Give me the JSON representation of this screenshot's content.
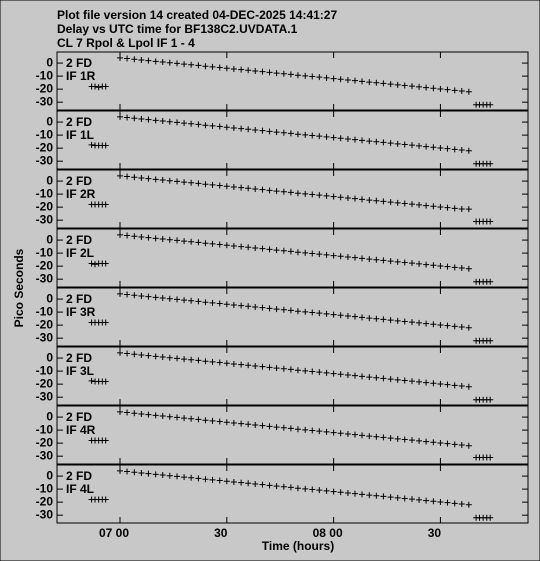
{
  "chart_data": {
    "type": "scatter",
    "title": [
      "Plot file version 14  created 04-DEC-2025 14:41:27",
      "Delay vs UTC time for BF138C2.UVDATA.1",
      "CL 7  Rpol & Lpol  IF 1 - 4"
    ],
    "x_label": "Time (hours)",
    "y_label": "Pico Seconds",
    "xlim": [
      6.705,
      8.91
    ],
    "ylim": [
      -36,
      8.5
    ],
    "xticks": [
      {
        "value": 7,
        "label": "07 00"
      },
      {
        "value": 7.5,
        "label": "30"
      },
      {
        "value": 8,
        "label": "08 00"
      },
      {
        "value": 8.5,
        "label": "30"
      }
    ],
    "yticks": [
      0,
      -10,
      -20,
      -30
    ],
    "x": [
      6.867,
      6.883,
      6.9,
      6.917,
      6.933,
      7,
      7.033,
      7.067,
      7.1,
      7.133,
      7.167,
      7.2,
      7.233,
      7.267,
      7.3,
      7.333,
      7.367,
      7.4,
      7.433,
      7.467,
      7.5,
      7.533,
      7.567,
      7.6,
      7.633,
      7.667,
      7.7,
      7.733,
      7.767,
      7.8,
      7.833,
      7.867,
      7.9,
      7.933,
      7.967,
      8,
      8.033,
      8.067,
      8.1,
      8.133,
      8.167,
      8.2,
      8.233,
      8.267,
      8.3,
      8.333,
      8.367,
      8.4,
      8.433,
      8.467,
      8.5,
      8.533,
      8.567,
      8.6,
      8.633,
      8.667,
      8.683,
      8.7,
      8.717,
      8.733
    ],
    "series": [
      {
        "name": "IF 1R",
        "label": "2 FD",
        "color": "#000000",
        "values": [
          -18,
          -18,
          -18.5,
          -18,
          -18,
          4,
          3.5,
          2.9,
          2.4,
          1.9,
          1.3,
          0.8,
          0.3,
          -0.2,
          -0.8,
          -1.3,
          -1.8,
          -2.4,
          -2.9,
          -3.4,
          -4,
          -4.5,
          -5,
          -5.5,
          -6.1,
          -6.6,
          -7.1,
          -7.7,
          -8.2,
          -8.7,
          -9.3,
          -9.8,
          -10.3,
          -10.8,
          -11.4,
          -11.9,
          -12.4,
          -13,
          -13.5,
          -14,
          -14.6,
          -15.1,
          -15.6,
          -16.1,
          -16.7,
          -17.2,
          -17.7,
          -18.3,
          -18.8,
          -19.3,
          -19.9,
          -20.4,
          -20.9,
          -21.4,
          -22,
          -32,
          -32,
          -32,
          -32,
          -32
        ]
      },
      {
        "name": "IF 1L",
        "label": "2 FD",
        "color": "#000000",
        "values": [
          -17.5,
          -18,
          -18,
          -18,
          -18,
          4,
          3.5,
          2.9,
          2.4,
          1.9,
          1.3,
          0.8,
          0.3,
          -0.2,
          -0.8,
          -1.3,
          -1.8,
          -2.4,
          -2.9,
          -3.4,
          -4,
          -4.5,
          -5,
          -5.5,
          -6.1,
          -6.6,
          -7.1,
          -7.7,
          -8.2,
          -8.7,
          -9.3,
          -9.8,
          -10.3,
          -10.8,
          -11.4,
          -11.9,
          -12.4,
          -13,
          -13.5,
          -14,
          -14.6,
          -15.1,
          -15.6,
          -16.1,
          -16.7,
          -17.2,
          -17.7,
          -18.3,
          -18.8,
          -19.3,
          -19.9,
          -20.4,
          -20.9,
          -21.4,
          -22,
          -32,
          -32,
          -32,
          -32,
          -32
        ]
      },
      {
        "name": "IF 2R",
        "label": "2 FD",
        "color": "#000000",
        "values": [
          -18,
          -18,
          -18,
          -18,
          -18,
          4,
          3.5,
          2.9,
          2.4,
          1.9,
          1.3,
          0.8,
          0.3,
          -0.2,
          -0.8,
          -1.3,
          -1.8,
          -2.4,
          -2.9,
          -3.4,
          -4,
          -4.5,
          -5,
          -5.5,
          -6.1,
          -6.6,
          -7.1,
          -7.7,
          -8.2,
          -8.7,
          -9.3,
          -9.8,
          -10.3,
          -10.8,
          -11.4,
          -11.9,
          -12.4,
          -13,
          -13.5,
          -14,
          -14.6,
          -15.1,
          -15.6,
          -16.1,
          -16.7,
          -17.2,
          -17.7,
          -18.3,
          -18.8,
          -19.3,
          -19.9,
          -20.4,
          -20.9,
          -21.4,
          -21.5,
          -31,
          -31,
          -31,
          -31,
          -31
        ]
      },
      {
        "name": "IF 2L",
        "label": "2 FD",
        "color": "#000000",
        "values": [
          -18,
          -18.5,
          -18,
          -18,
          -18,
          4,
          3.5,
          2.9,
          2.4,
          1.9,
          1.3,
          0.8,
          0.3,
          -0.2,
          -0.8,
          -1.3,
          -1.8,
          -2.4,
          -2.9,
          -3.4,
          -4,
          -4.5,
          -5,
          -5.5,
          -6.1,
          -6.6,
          -7.1,
          -7.7,
          -8.2,
          -8.7,
          -9.3,
          -9.8,
          -10.3,
          -10.8,
          -11.4,
          -11.9,
          -12.4,
          -13,
          -13.5,
          -14,
          -14.6,
          -15.1,
          -15.6,
          -16.1,
          -16.7,
          -17.2,
          -17.7,
          -18.3,
          -18.8,
          -19.3,
          -19.9,
          -20.4,
          -20.9,
          -21.4,
          -22,
          -32,
          -32,
          -32,
          -32,
          -32
        ]
      },
      {
        "name": "IF 3R",
        "label": "2 FD",
        "color": "#000000",
        "values": [
          -18,
          -18,
          -18,
          -18,
          -18,
          4,
          3.5,
          2.9,
          2.4,
          1.9,
          1.3,
          0.8,
          0.3,
          -0.2,
          -0.8,
          -1.3,
          -1.8,
          -2.4,
          -2.9,
          -3.4,
          -4,
          -4.5,
          -5,
          -5.5,
          -6.1,
          -6.6,
          -7.1,
          -7.7,
          -8.2,
          -8.7,
          -9.3,
          -9.8,
          -10.3,
          -10.8,
          -11.4,
          -11.9,
          -12.4,
          -13,
          -13.5,
          -14,
          -14.6,
          -15.1,
          -15.6,
          -16.1,
          -16.7,
          -17.2,
          -17.7,
          -18.3,
          -18.8,
          -19.3,
          -19.9,
          -20.4,
          -20.9,
          -21.4,
          -22,
          -32,
          -32,
          -32,
          -32,
          -32
        ]
      },
      {
        "name": "IF 3L",
        "label": "2 FD",
        "color": "#000000",
        "values": [
          -17.5,
          -18,
          -18,
          -18,
          -18,
          4,
          3.5,
          2.9,
          2.4,
          1.9,
          1.3,
          0.8,
          0.3,
          -0.2,
          -0.8,
          -1.3,
          -1.8,
          -2.4,
          -2.9,
          -3.4,
          -4,
          -4.5,
          -5,
          -5.5,
          -6.1,
          -6.6,
          -7.1,
          -7.7,
          -8.2,
          -8.7,
          -9.3,
          -9.8,
          -10.3,
          -10.8,
          -11.4,
          -11.9,
          -12.4,
          -13,
          -13.5,
          -14,
          -14.6,
          -15.1,
          -15.6,
          -16.1,
          -16.7,
          -17.2,
          -17.7,
          -18.3,
          -18.8,
          -19.3,
          -19.9,
          -20.4,
          -20.9,
          -21.4,
          -22,
          -32,
          -32,
          -32,
          -32,
          -32
        ]
      },
      {
        "name": "IF 4R",
        "label": "2 FD",
        "color": "#000000",
        "values": [
          -18,
          -18,
          -18,
          -18,
          -18,
          4,
          3.5,
          2.9,
          2.4,
          1.9,
          1.3,
          0.8,
          0.3,
          -0.2,
          -0.8,
          -1.3,
          -1.8,
          -2.4,
          -2.9,
          -3.4,
          -4,
          -4.5,
          -5,
          -5.5,
          -6.1,
          -6.6,
          -7.1,
          -7.7,
          -8.2,
          -8.7,
          -9.3,
          -9.8,
          -10.3,
          -10.8,
          -11.4,
          -11.9,
          -12.4,
          -13,
          -13.5,
          -14,
          -14.6,
          -15.1,
          -15.6,
          -16.1,
          -16.7,
          -17.2,
          -17.7,
          -18.3,
          -18.8,
          -19.3,
          -19.9,
          -20.4,
          -20.9,
          -21.4,
          -22,
          -31,
          -31,
          -31,
          -31,
          -31
        ]
      },
      {
        "name": "IF 4L",
        "label": "2 FD",
        "color": "#000000",
        "values": [
          -18,
          -18,
          -18,
          -18,
          -18,
          4,
          3.5,
          2.9,
          2.4,
          1.9,
          1.3,
          0.8,
          0.3,
          -0.2,
          -0.8,
          -1.3,
          -1.8,
          -2.4,
          -2.9,
          -3.4,
          -4,
          -4.5,
          -5,
          -5.5,
          -6.1,
          -6.6,
          -7.1,
          -7.7,
          -8.2,
          -8.7,
          -9.3,
          -9.8,
          -10.3,
          -10.8,
          -11.4,
          -11.9,
          -12.4,
          -13,
          -13.5,
          -14,
          -14.6,
          -15.1,
          -15.6,
          -16.1,
          -16.7,
          -17.2,
          -17.7,
          -18.3,
          -18.8,
          -19.3,
          -19.9,
          -20.4,
          -20.9,
          -21.4,
          -22,
          -32,
          -32,
          -32,
          -32,
          -32
        ]
      }
    ]
  }
}
